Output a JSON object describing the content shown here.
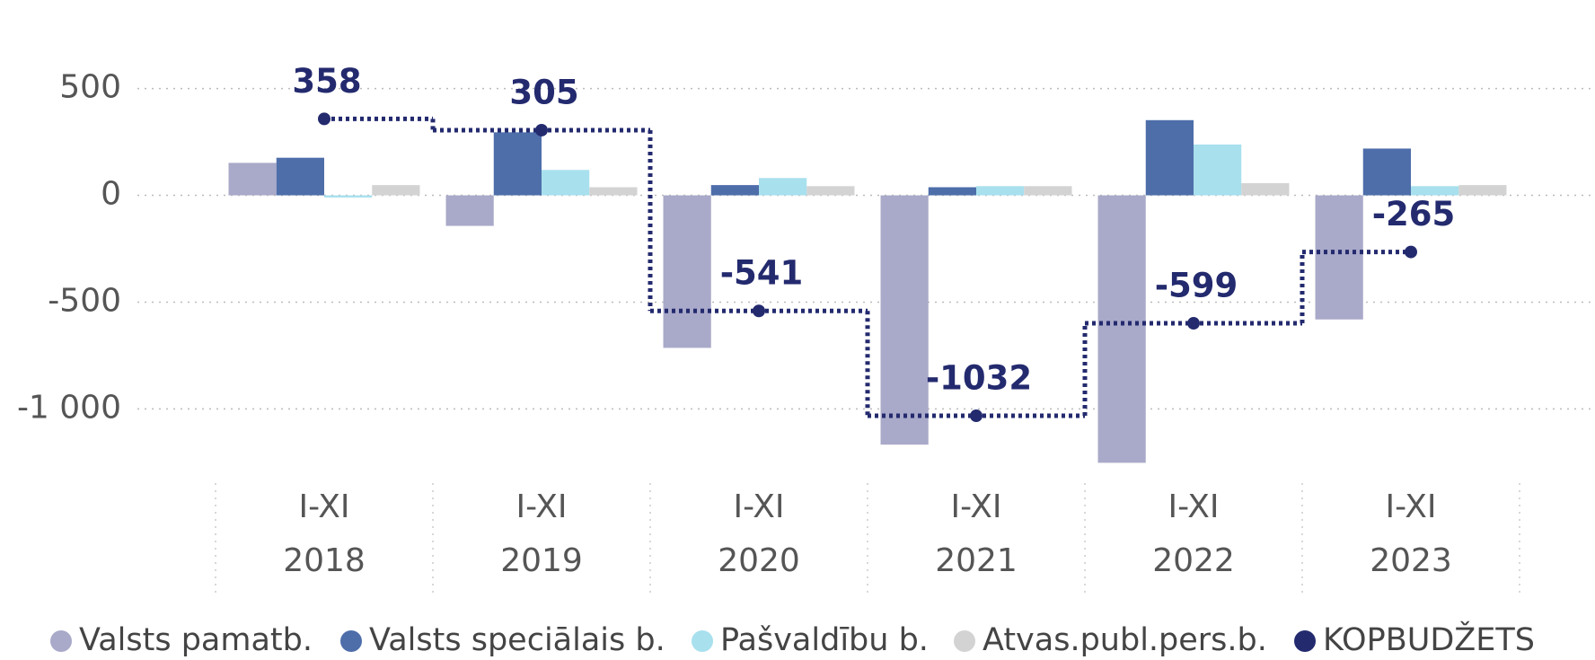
{
  "chart_data": {
    "type": "bar",
    "categories": [
      [
        "I-XI",
        "2018"
      ],
      [
        "I-XI",
        "2019"
      ],
      [
        "I-XI",
        "2020"
      ],
      [
        "I-XI",
        "2021"
      ],
      [
        "I-XI",
        "2022"
      ],
      [
        "I-XI",
        "2023"
      ]
    ],
    "ylim": [
      -1300,
      600
    ],
    "yticks": [
      {
        "value": -1000,
        "label": "-1 000"
      },
      -500,
      0,
      500
    ],
    "grid": true,
    "legend": "bottom",
    "series": [
      {
        "name": "Valsts pamatb.",
        "color": "#a9a9c9",
        "values": [
          152,
          -143,
          -714,
          -1167,
          -1252,
          -581
        ]
      },
      {
        "name": "Valsts speciālais b.",
        "color": "#4e6eaa",
        "values": [
          176,
          295,
          48,
          38,
          352,
          219
        ]
      },
      {
        "name": "Pašvaldību b.",
        "color": "#a8e0ee",
        "values": [
          -10,
          119,
          81,
          43,
          238,
          43
        ]
      },
      {
        "name": "Atvas.publ.pers.b.",
        "color": "#d3d3d3",
        "values": [
          48,
          38,
          43,
          43,
          57,
          48
        ]
      },
      {
        "name": "KOPBUDŽETS",
        "color": "#232a6e",
        "type": "step",
        "values": [
          358,
          305,
          -541,
          -1032,
          -599,
          -265
        ]
      }
    ]
  }
}
